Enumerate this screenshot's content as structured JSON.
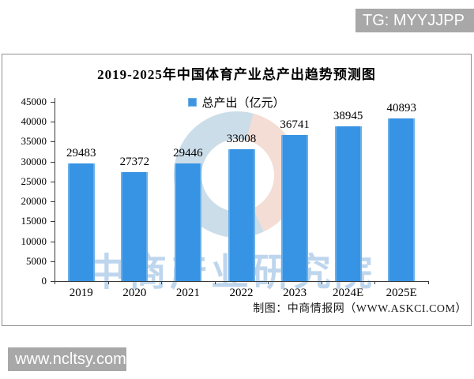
{
  "page": {
    "top_badge": "TG: MYYJJPP",
    "bottom_badge": "www.ncltsy.com"
  },
  "chart_data": {
    "type": "bar",
    "title": "2019-2025年中国体育产业总产出趋势预测图",
    "legend": "总产出（亿元）",
    "legend_position": "top",
    "categories": [
      "2019",
      "2020",
      "2021",
      "2022",
      "2023",
      "2024E",
      "2025E"
    ],
    "values": [
      29483,
      27372,
      29446,
      33008,
      36741,
      38945,
      40893
    ],
    "xlabel": "",
    "ylabel": "",
    "ylim": [
      0,
      45000
    ],
    "ytick_step": 5000,
    "grid": false,
    "bar_color": "#3793e3",
    "watermark_text": "中商产业研究院",
    "credit": "制图：中商情报网（WWW.ASKCI.COM）"
  }
}
